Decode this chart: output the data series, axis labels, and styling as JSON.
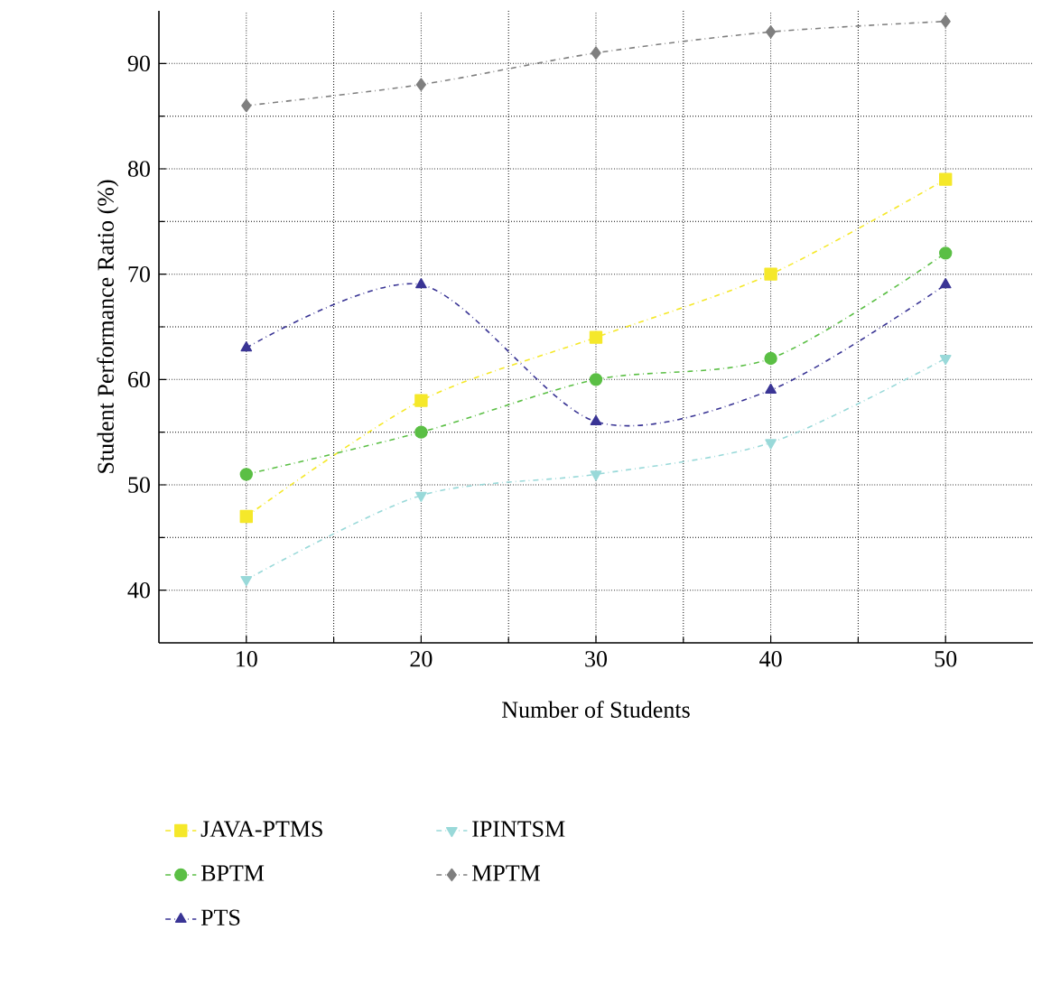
{
  "chart_data": {
    "type": "line",
    "xlabel": "Number of Students",
    "ylabel": "Student Performance Ratio (%)",
    "x": [
      10,
      20,
      30,
      40,
      50
    ],
    "series": [
      {
        "name": "JAVA-PTMS",
        "color": "#f5e82a",
        "marker": "square",
        "values": [
          47,
          58,
          64,
          70,
          79
        ]
      },
      {
        "name": "IPINTSM",
        "color": "#99d9d9",
        "marker": "triangle down",
        "values": [
          41,
          49,
          51,
          54,
          62
        ]
      },
      {
        "name": "BPTM",
        "color": "#5bbf45",
        "marker": "circle",
        "values": [
          51,
          55,
          60,
          62,
          72
        ]
      },
      {
        "name": "MPTM",
        "color": "#7f7f7f",
        "marker": "diamond",
        "values": [
          86,
          88,
          91,
          93,
          94
        ]
      },
      {
        "name": "PTS",
        "color": "#3a3595",
        "marker": "triangle",
        "values": [
          63,
          69,
          56,
          59,
          69
        ]
      }
    ],
    "xlim": [
      5,
      55
    ],
    "ylim": [
      35,
      95
    ],
    "xticks": [
      10,
      20,
      30,
      40,
      50
    ],
    "yticks": [
      40,
      50,
      60,
      70,
      80,
      90
    ],
    "grid": true,
    "legend": "bottom",
    "line_style": "dashdot"
  }
}
